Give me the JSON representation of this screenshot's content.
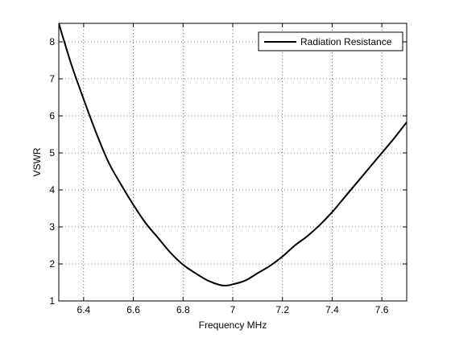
{
  "chart_data": {
    "type": "line",
    "title": "",
    "xlabel": "Frequency MHz",
    "ylabel": "VSWR",
    "xlim": [
      6.3,
      7.7
    ],
    "ylim": [
      1,
      8.5
    ],
    "xticks": [
      6.4,
      6.6,
      6.8,
      7,
      7.2,
      7.4,
      7.6
    ],
    "xtick_labels": [
      "6.4",
      "6.6",
      "6.8",
      "7",
      "7.2",
      "7.4",
      "7.6"
    ],
    "yticks": [
      1,
      2,
      3,
      4,
      5,
      6,
      7,
      8
    ],
    "ytick_labels": [
      "1",
      "2",
      "3",
      "4",
      "5",
      "6",
      "7",
      "8"
    ],
    "grid": true,
    "legend_position": "top-right",
    "series": [
      {
        "name": "Radiation Resistance",
        "color": "#000000",
        "x": [
          6.3,
          6.35,
          6.4,
          6.45,
          6.5,
          6.55,
          6.6,
          6.65,
          6.7,
          6.75,
          6.8,
          6.85,
          6.9,
          6.95,
          6.98,
          7.0,
          7.05,
          7.1,
          7.15,
          7.2,
          7.25,
          7.3,
          7.35,
          7.4,
          7.45,
          7.5,
          7.55,
          7.6,
          7.65,
          7.7
        ],
        "y": [
          8.5,
          7.4,
          6.45,
          5.55,
          4.75,
          4.15,
          3.6,
          3.1,
          2.7,
          2.3,
          1.98,
          1.75,
          1.55,
          1.43,
          1.42,
          1.45,
          1.55,
          1.75,
          1.95,
          2.2,
          2.5,
          2.75,
          3.05,
          3.4,
          3.8,
          4.2,
          4.6,
          5.0,
          5.4,
          5.83
        ]
      }
    ]
  }
}
